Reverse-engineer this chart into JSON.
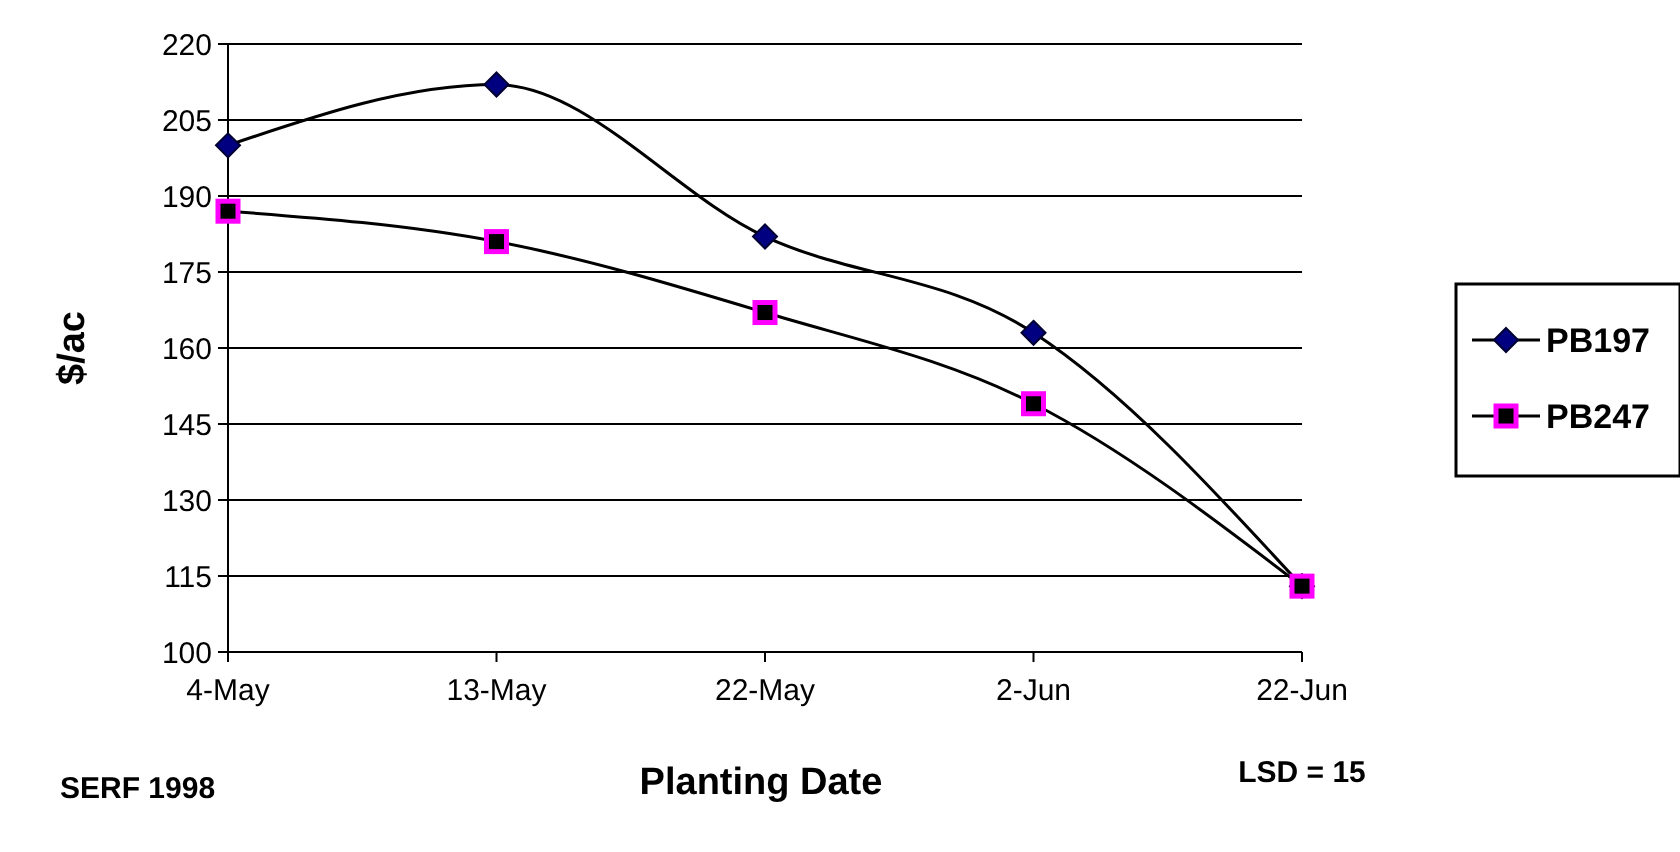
{
  "chart_data": {
    "type": "line",
    "xlabel": "Planting Date",
    "ylabel": "$/ac",
    "categories": [
      "4-May",
      "13-May",
      "22-May",
      "2-Jun",
      "22-Jun"
    ],
    "series": [
      {
        "name": "PB197",
        "color": "#000080",
        "marker": "diamond",
        "values": [
          200,
          212,
          182,
          163,
          113
        ]
      },
      {
        "name": "PB247",
        "color": "#ff00ff",
        "marker": "square",
        "values": [
          187,
          181,
          167,
          149,
          113
        ]
      }
    ],
    "ylim": [
      100,
      220
    ],
    "yticks": [
      100,
      115,
      130,
      145,
      160,
      175,
      190,
      205,
      220
    ],
    "grid": "y",
    "legend": "right",
    "line_style": "solid",
    "annotations": [
      "SERF 1998",
      "LSD = 15"
    ]
  }
}
